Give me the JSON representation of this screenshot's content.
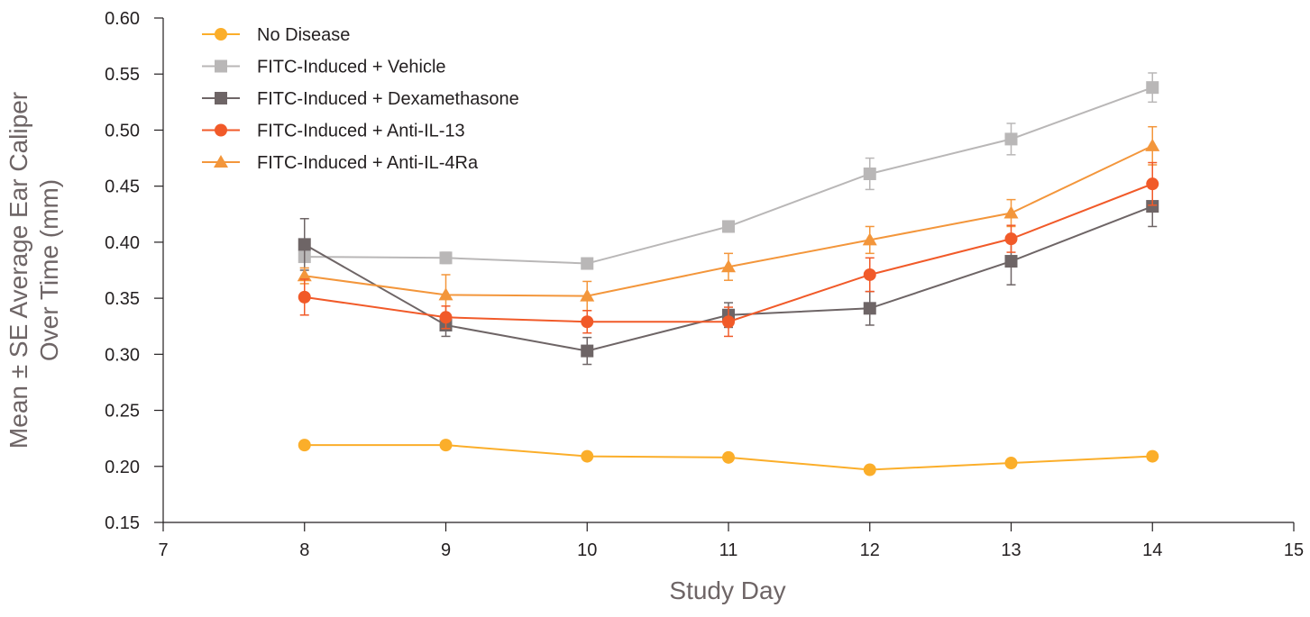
{
  "chart_data": {
    "type": "line",
    "title": "",
    "xlabel": "Study Day",
    "ylabel": "Mean ± SE Average Ear Caliper Over Time (mm)",
    "ylabel_line1": "Mean ± SE Average Ear Caliper",
    "ylabel_line2": "Over Time (mm)",
    "xlim": [
      7,
      15
    ],
    "ylim": [
      0.15,
      0.6
    ],
    "x_ticks": [
      "7",
      "8",
      "9",
      "10",
      "11",
      "12",
      "13",
      "14",
      "15"
    ],
    "y_ticks": [
      "0.15",
      "0.20",
      "0.25",
      "0.30",
      "0.35",
      "0.40",
      "0.45",
      "0.50",
      "0.55",
      "0.60"
    ],
    "legend_position": "top-left",
    "x": [
      8,
      9,
      10,
      11,
      12,
      13,
      14
    ],
    "series": [
      {
        "name": "FITC-Induced + Vehicle",
        "color": "#b9b7b7",
        "marker": "square",
        "values": [
          0.387,
          0.386,
          0.381,
          0.414,
          0.461,
          0.492,
          0.538
        ],
        "errors": [
          0.01,
          0.005,
          0.004,
          0.005,
          0.014,
          0.014,
          0.013
        ]
      },
      {
        "name": "FITC-Induced + Dexamethasone",
        "color": "#6e6566",
        "marker": "square",
        "values": [
          0.398,
          0.326,
          0.303,
          0.335,
          0.341,
          0.383,
          0.432
        ],
        "errors": [
          0.023,
          0.01,
          0.012,
          0.011,
          0.015,
          0.021,
          0.018
        ]
      },
      {
        "name": "FITC-Induced + Anti-IL-4Ra",
        "color": "#f3963b",
        "marker": "triangle",
        "values": [
          0.37,
          0.353,
          0.352,
          0.378,
          0.402,
          0.426,
          0.486
        ],
        "errors": [
          0.007,
          0.018,
          0.013,
          0.012,
          0.012,
          0.012,
          0.017
        ]
      },
      {
        "name": "FITC-Induced + Anti-IL-13",
        "color": "#f15a29",
        "marker": "circle",
        "values": [
          0.351,
          0.333,
          0.329,
          0.329,
          0.371,
          0.403,
          0.452
        ],
        "errors": [
          0.016,
          0.01,
          0.01,
          0.013,
          0.015,
          0.012,
          0.019
        ]
      },
      {
        "name": "No Disease",
        "color": "#fbae2a",
        "marker": "circle",
        "values": [
          0.219,
          0.219,
          0.209,
          0.208,
          0.197,
          0.203,
          0.209
        ],
        "errors": [
          0,
          0,
          0,
          0,
          0,
          0,
          0
        ]
      }
    ],
    "legend": [
      {
        "name": "No Disease",
        "color": "#fbae2a",
        "marker": "circle"
      },
      {
        "name": "FITC-Induced + Vehicle",
        "color": "#b9b7b7",
        "marker": "square"
      },
      {
        "name": "FITC-Induced + Dexamethasone",
        "color": "#6e6566",
        "marker": "square"
      },
      {
        "name": "FITC-Induced + Anti-IL-13",
        "color": "#f15a29",
        "marker": "circle"
      },
      {
        "name": "FITC-Induced + Anti-IL-4Ra",
        "color": "#f3963b",
        "marker": "triangle"
      }
    ]
  }
}
